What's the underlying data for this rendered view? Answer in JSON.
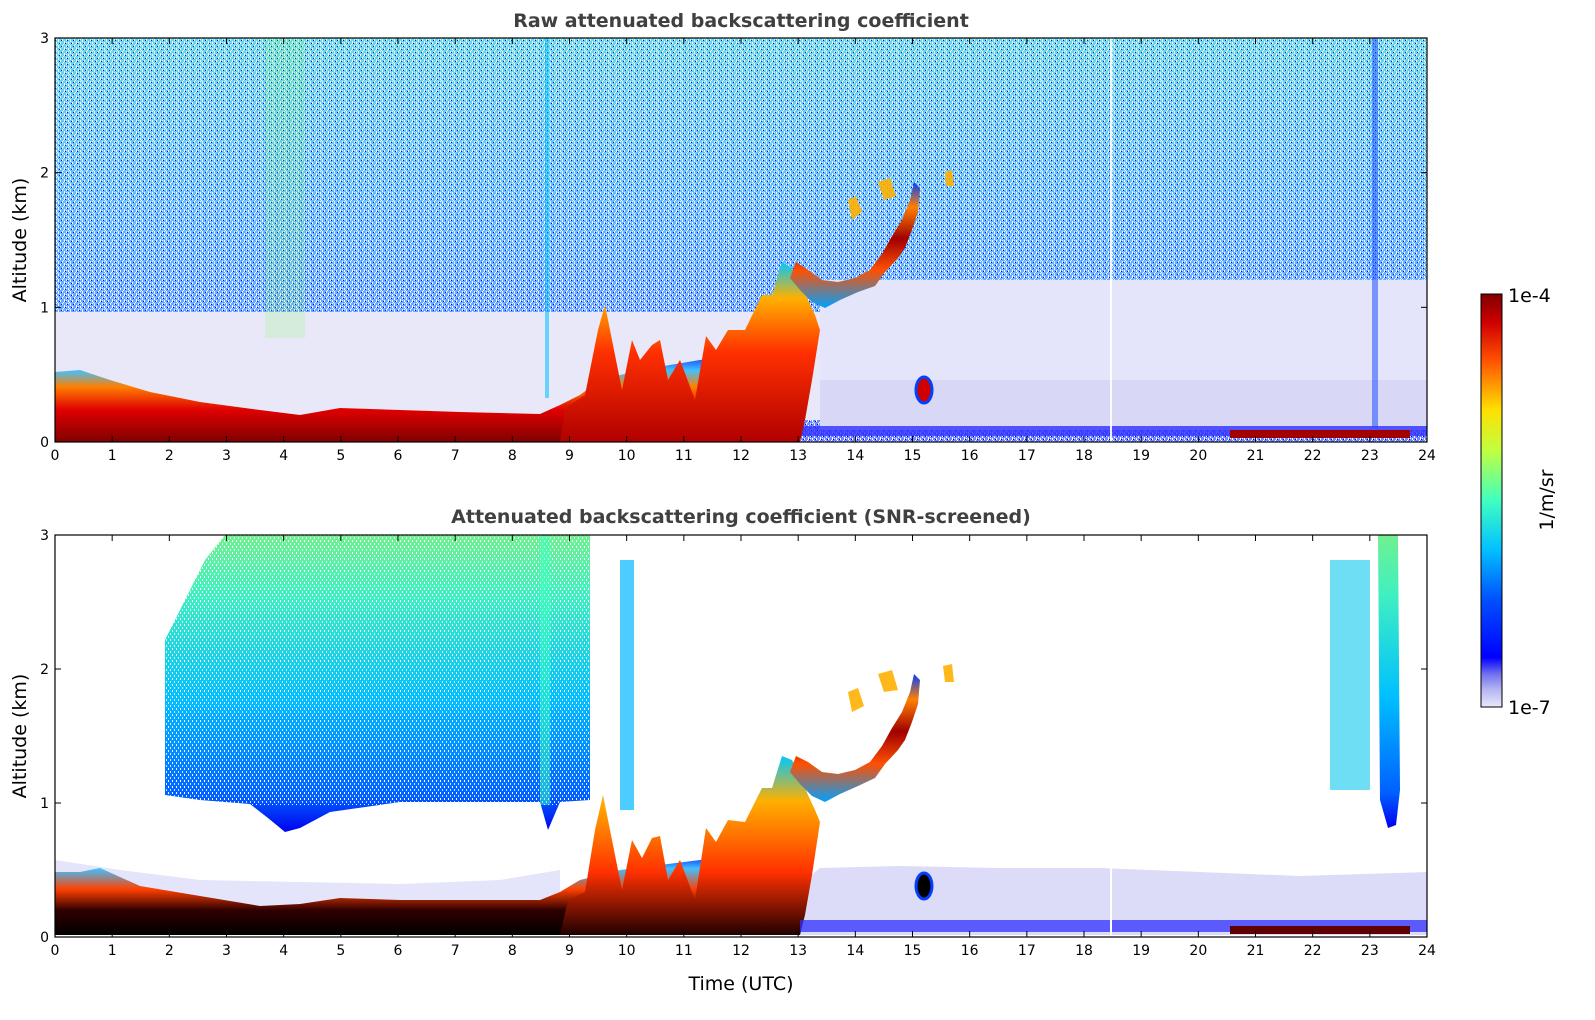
{
  "chart_data": [
    {
      "type": "heatmap",
      "title": "Raw attenuated backscattering coefficient",
      "xlabel": "",
      "ylabel": "Altitude (km)",
      "xlim": [
        0,
        24
      ],
      "ylim": [
        0,
        3
      ],
      "xticks": [
        0,
        1,
        2,
        3,
        4,
        5,
        6,
        7,
        8,
        9,
        10,
        11,
        12,
        13,
        14,
        15,
        16,
        17,
        18,
        19,
        20,
        21,
        22,
        23,
        24
      ],
      "yticks": [
        0,
        1,
        2,
        3
      ],
      "screened": false,
      "features": [
        {
          "name": "boundary layer",
          "time_range": [
            0,
            12.8
          ],
          "top_altitude_km": [
            0.35,
            0.25,
            0.2,
            0.22,
            0.45,
            1.0,
            1.3
          ]
        },
        {
          "name": "elevated layer",
          "time_range": [
            12.8,
            15.2
          ],
          "altitude_km": [
            0.9,
            1.1,
            1.5,
            1.9
          ]
        },
        {
          "name": "small cloud",
          "time": 15.2,
          "altitude_km": 0.35
        },
        {
          "name": "residual layer",
          "time_range": [
            13,
            24
          ],
          "altitude_km": [
            0,
            0.4
          ]
        }
      ]
    },
    {
      "type": "heatmap",
      "title": "Attenuated backscattering coefficient (SNR-screened)",
      "xlabel": "Time (UTC)",
      "ylabel": "Altitude (km)",
      "xlim": [
        0,
        24
      ],
      "ylim": [
        0,
        3
      ],
      "xticks": [
        0,
        1,
        2,
        3,
        4,
        5,
        6,
        7,
        8,
        9,
        10,
        11,
        12,
        13,
        14,
        15,
        16,
        17,
        18,
        19,
        20,
        21,
        22,
        23,
        24
      ],
      "yticks": [
        0,
        1,
        2,
        3
      ],
      "screened": true,
      "features": [
        {
          "name": "aerosol layer",
          "time_range": [
            2.6,
            9.3
          ],
          "altitude_km": [
            0.8,
            3.0
          ]
        },
        {
          "name": "aerosol layer",
          "time_range": [
            22.4,
            23.7
          ],
          "altitude_km": [
            0.8,
            3.0
          ]
        },
        {
          "name": "masked region",
          "time_range": [
            9.3,
            22.4
          ],
          "altitude_km": [
            1.0,
            3.0
          ]
        }
      ]
    }
  ],
  "colorbar": {
    "min_label": "1e-7",
    "max_label": "1e-4",
    "label": "1/m/sr",
    "colormap": "jet with light lavender low end",
    "low_color": "#e6e6fa",
    "high_color": "#800000"
  }
}
